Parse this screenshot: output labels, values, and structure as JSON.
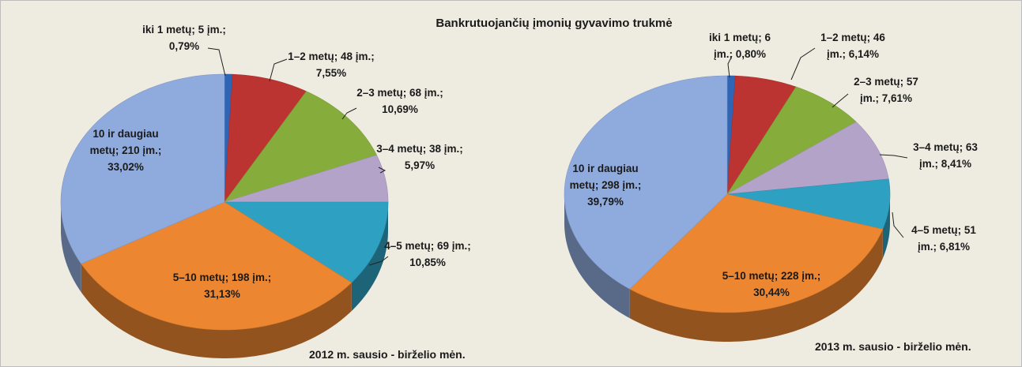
{
  "title": "Bankrutuojančių įmonių gyvavimo trukmė",
  "chart_data": [
    {
      "type": "pie",
      "subtitle": "2012 m. sausio - birželio mėn.",
      "unit": "įm.",
      "categories": [
        "iki 1 metų",
        "1–2 metų",
        "2–3 metų",
        "3–4 metų",
        "4–5 metų",
        "5–10 metų",
        "10 ir daugiau metų"
      ],
      "values": [
        5,
        48,
        68,
        38,
        69,
        198,
        210
      ],
      "percents": [
        0.79,
        7.55,
        10.69,
        5.97,
        10.85,
        31.13,
        33.02
      ],
      "percent_labels": [
        "0,79%",
        "7,55%",
        "10,69%",
        "5,97%",
        "10,85%",
        "31,13%",
        "33,02%"
      ],
      "colors": [
        "#2f65b5",
        "#bc3431",
        "#86ad3c",
        "#b3a3c9",
        "#2ea1c2",
        "#ec8630",
        "#8faadc"
      ]
    },
    {
      "type": "pie",
      "subtitle": "2013 m. sausio - birželio mėn.",
      "unit": "įm.",
      "categories": [
        "iki 1 metų",
        "1–2 metų",
        "2–3 metų",
        "3–4 metų",
        "4–5 metų",
        "5–10 metų",
        "10 ir daugiau metų"
      ],
      "values": [
        6,
        46,
        57,
        63,
        51,
        228,
        298
      ],
      "percents": [
        0.8,
        6.14,
        7.61,
        8.41,
        6.81,
        30.44,
        39.79
      ],
      "percent_labels": [
        "0,80%",
        "6,14%",
        "7,61%",
        "8,41%",
        "6,81%",
        "30,44%",
        "39,79%"
      ],
      "colors": [
        "#2f65b5",
        "#bc3431",
        "#86ad3c",
        "#b3a3c9",
        "#2ea1c2",
        "#ec8630",
        "#8faadc"
      ]
    }
  ]
}
